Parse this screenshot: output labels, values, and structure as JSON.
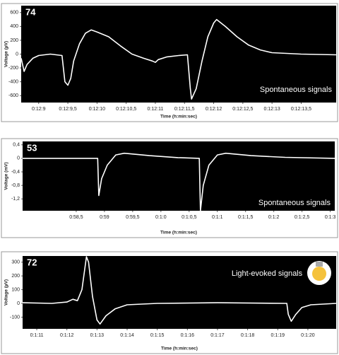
{
  "chart_data": [
    {
      "type": "line",
      "label": "74",
      "annotation": "Spontaneous signals",
      "xlabel": "Time (h:min:sec)",
      "ylabel": "Voltage (µV)",
      "color": "#ffffff",
      "x": [
        728.7,
        728.75,
        728.8,
        728.9,
        729.0,
        729.2,
        729.4,
        729.45,
        729.5,
        729.55,
        729.6,
        729.7,
        729.8,
        729.9,
        730.0,
        730.2,
        730.4,
        730.6,
        730.8,
        730.95,
        731.0,
        731.05,
        731.2,
        731.4,
        731.55,
        731.6,
        731.62,
        731.7,
        731.8,
        731.9,
        732.0,
        732.05,
        732.2,
        732.4,
        732.6,
        732.8,
        733.0,
        733.5,
        734.1
      ],
      "values": [
        -60,
        -250,
        -150,
        -60,
        -20,
        0,
        -20,
        -400,
        -450,
        -350,
        -100,
        150,
        300,
        350,
        320,
        250,
        120,
        0,
        -60,
        -100,
        -120,
        -80,
        -40,
        -20,
        -10,
        -500,
        -650,
        -500,
        -100,
        250,
        450,
        500,
        400,
        250,
        130,
        60,
        20,
        0,
        -10
      ],
      "xlim": [
        728.7,
        734.1
      ],
      "ylim": [
        -700,
        700
      ],
      "xticks": [
        {
          "value": 729,
          "label": "0:12:9"
        },
        {
          "value": 729.5,
          "label": "0:12:9,5"
        },
        {
          "value": 730,
          "label": "0:12:10"
        },
        {
          "value": 730.5,
          "label": "0:12:10,5"
        },
        {
          "value": 731,
          "label": "0:12:11"
        },
        {
          "value": 731.5,
          "label": "0:12:11,5"
        },
        {
          "value": 732,
          "label": "0:12:12"
        },
        {
          "value": 732.5,
          "label": "0:12:12,5"
        },
        {
          "value": 733,
          "label": "0:12:13"
        },
        {
          "value": 733.5,
          "label": "0:12:13,5"
        }
      ],
      "yticks": [
        600,
        400,
        200,
        0,
        -200,
        -400,
        -600
      ]
    },
    {
      "type": "line",
      "label": "53",
      "annotation": "Spontaneous signals",
      "xlabel": "Time (h:min:sec)",
      "ylabel": "Voltage (mV)",
      "color": "#ffffff",
      "x": [
        57.55,
        58.88,
        58.9,
        58.95,
        59.05,
        59.2,
        59.35,
        59.8,
        60.3,
        60.68,
        60.7,
        60.75,
        60.85,
        61.0,
        61.15,
        61.6,
        62.2,
        63.08
      ],
      "values": [
        0,
        0,
        -1.1,
        -0.6,
        -0.2,
        0.1,
        0.15,
        0.08,
        0.02,
        0,
        -1.55,
        -0.8,
        -0.2,
        0.1,
        0.15,
        0.08,
        0.03,
        0
      ],
      "xlim": [
        57.55,
        63.08
      ],
      "ylim": [
        -1.55,
        0.5
      ],
      "xticks": [
        {
          "value": 58.5,
          "label": "0:58,5"
        },
        {
          "value": 59,
          "label": "0:59"
        },
        {
          "value": 59.5,
          "label": "0:59,5"
        },
        {
          "value": 60,
          "label": "0:1:0"
        },
        {
          "value": 60.5,
          "label": "0:1:0,5"
        },
        {
          "value": 61,
          "label": "0:1:1"
        },
        {
          "value": 61.5,
          "label": "0:1:1,5"
        },
        {
          "value": 62,
          "label": "0:1:2"
        },
        {
          "value": 62.5,
          "label": "0:1:2,5"
        },
        {
          "value": 63,
          "label": "0:1:3"
        }
      ],
      "yticks": [
        {
          "value": 0.4,
          "label": "0,4"
        },
        0,
        {
          "value": -0.4,
          "label": "-0,4"
        },
        {
          "value": -0.8,
          "label": "-0,8"
        },
        {
          "value": -1.2,
          "label": "-1,2"
        }
      ]
    },
    {
      "type": "line",
      "label": "72",
      "annotation": "Light-evoked signals",
      "xlabel": "Time (h:min:sec)",
      "ylabel": "Voltage (µV)",
      "color": "#ffffff",
      "x": [
        70.53,
        71.5,
        72.0,
        72.2,
        72.35,
        72.5,
        72.65,
        72.72,
        72.85,
        73.0,
        73.1,
        73.3,
        73.6,
        74.0,
        75,
        77,
        79.3,
        79.35,
        79.45,
        79.6,
        79.8,
        80.1,
        80.94
      ],
      "values": [
        5,
        0,
        10,
        30,
        20,
        100,
        340,
        300,
        50,
        -120,
        -150,
        -90,
        -40,
        -10,
        0,
        5,
        0,
        -80,
        -130,
        -80,
        -30,
        -10,
        0
      ],
      "xlim": [
        70.53,
        80.94
      ],
      "ylim": [
        -185,
        345
      ],
      "xticks": [
        {
          "value": 71,
          "label": "0:1:11"
        },
        {
          "value": 72,
          "label": "0:1:12"
        },
        {
          "value": 73,
          "label": "0:1:13"
        },
        {
          "value": 74,
          "label": "0:1:14"
        },
        {
          "value": 75,
          "label": "0:1:15"
        },
        {
          "value": 76,
          "label": "0:1:16"
        },
        {
          "value": 77,
          "label": "0:1:17"
        },
        {
          "value": 78,
          "label": "0:1:18"
        },
        {
          "value": 79,
          "label": "0:1:19"
        },
        {
          "value": 80,
          "label": "0:1:20"
        }
      ],
      "yticks": [
        300,
        200,
        100,
        0,
        -100
      ]
    }
  ]
}
